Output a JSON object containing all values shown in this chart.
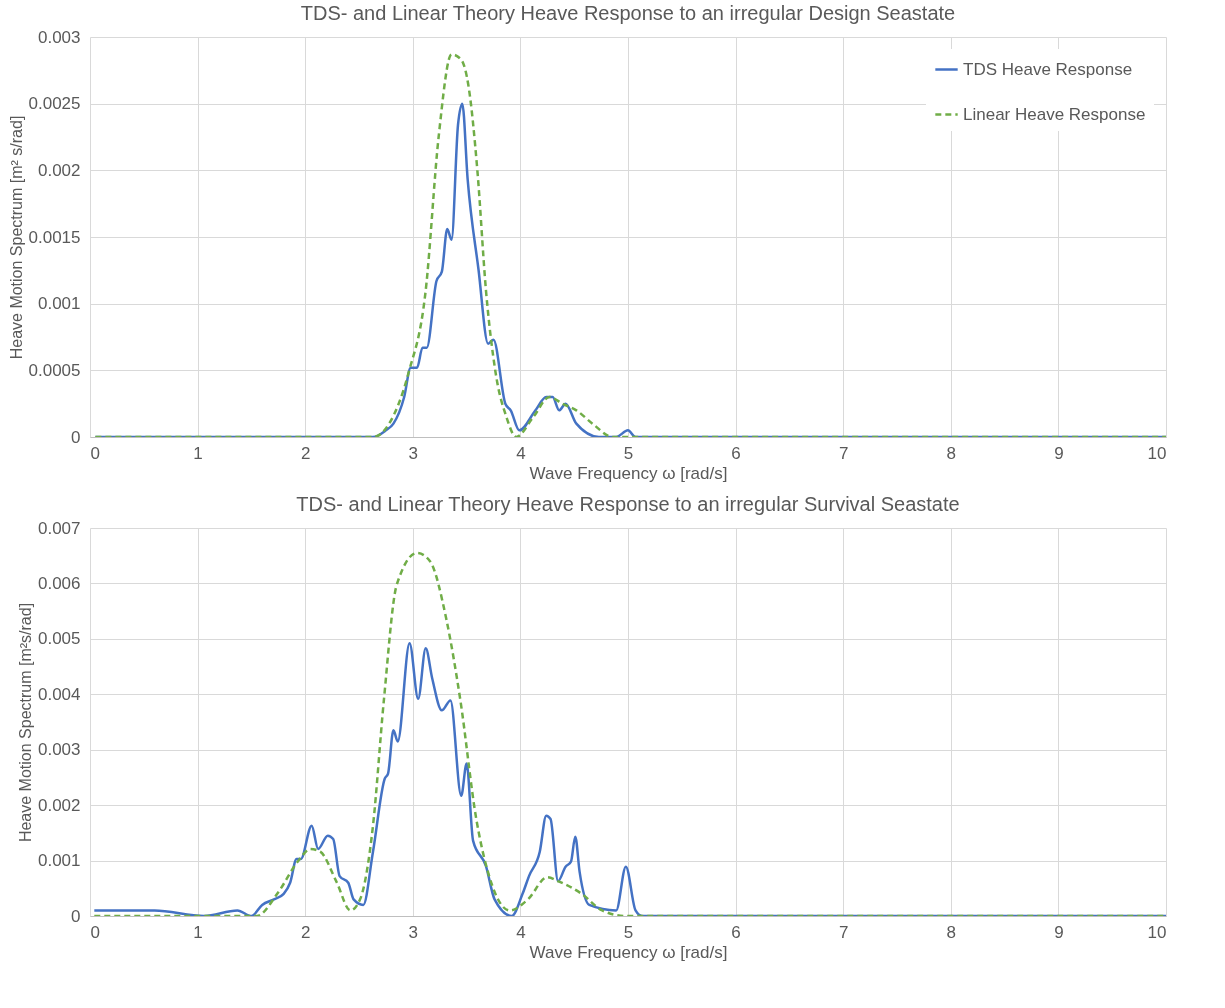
{
  "chart_data": [
    {
      "type": "line",
      "title": "TDS- and Linear Theory Heave Response to an irregular Design Seastate",
      "xlabel": "Wave Frequency ω [rad/s]",
      "ylabel": "Heave Motion Spectrum [m² s/rad]",
      "xlim": [
        0,
        10
      ],
      "ylim": [
        0,
        0.003
      ],
      "xticks": [
        0,
        1,
        2,
        3,
        4,
        5,
        6,
        7,
        8,
        9,
        10
      ],
      "yticks": [
        0,
        0.0005,
        0.001,
        0.0015,
        0.002,
        0.0025,
        0.003
      ],
      "grid": true,
      "legend": "top right",
      "series": [
        {
          "name": "TDS Heave Response",
          "color": "#4472c4",
          "line_style": "solid",
          "x": [
            0.05,
            1,
            2,
            2.63,
            2.75,
            2.82,
            2.92,
            2.98,
            3.04,
            3.09,
            3.13,
            3.22,
            3.27,
            3.32,
            3.36,
            3.42,
            3.46,
            3.51,
            3.61,
            3.7,
            3.75,
            3.86,
            3.91,
            3.99,
            4.14,
            4.24,
            4.3,
            4.36,
            4.42,
            4.52,
            4.73,
            4.89,
            5,
            5.07,
            6,
            8,
            10
          ],
          "values": [
            0,
            0,
            0,
            0,
            5e-05,
            0.0001,
            0.0003,
            0.00052,
            0.00052,
            0.00067,
            0.00067,
            0.00117,
            0.00124,
            0.00156,
            0.00148,
            0.00234,
            0.0025,
            0.00193,
            0.00126,
            0.0007,
            0.00073,
            0.00025,
            0.0002,
            5e-05,
            0.0002,
            0.0003,
            0.0003,
            0.0002,
            0.00025,
            0.0001,
            0,
            0,
            5e-05,
            0,
            0,
            0,
            0
          ]
        },
        {
          "name": "Linear Heave Response",
          "color": "#70ad47",
          "line_style": "dashed",
          "x": [
            0.05,
            1,
            2,
            2.63,
            2.78,
            2.96,
            3.12,
            3.24,
            3.36,
            3.45,
            3.52,
            3.6,
            3.68,
            3.77,
            3.87,
            3.96,
            4.12,
            4.27,
            4.39,
            4.52,
            4.67,
            4.86,
            5.1,
            6,
            8,
            10
          ],
          "values": [
            0,
            0,
            0,
            0,
            0.0001,
            0.00048,
            0.0011,
            0.00225,
            0.00287,
            0.00283,
            0.00262,
            0.002,
            0.0011,
            0.00048,
            0.00015,
            0,
            0.00015,
            0.0003,
            0.00025,
            0.0002,
            0.0001,
            0,
            0,
            0,
            0,
            0
          ]
        }
      ]
    },
    {
      "type": "line",
      "title": "TDS- and Linear Theory Heave Response to an irregular Survival Seastate",
      "xlabel": "Wave Frequency ω [rad/s]",
      "ylabel": "Heave Motion Spectrum [m²s/rad]",
      "xlim": [
        0,
        10
      ],
      "ylim": [
        0,
        0.007
      ],
      "xticks": [
        0,
        1,
        2,
        3,
        4,
        5,
        6,
        7,
        8,
        9,
        10
      ],
      "yticks": [
        0,
        0.001,
        0.002,
        0.003,
        0.004,
        0.005,
        0.006,
        0.007
      ],
      "grid": true,
      "legend": "top right",
      "series": [
        {
          "name": "TDS Heave Response",
          "color": "#4472c4",
          "line_style": "solid",
          "x": [
            0.04,
            0.6,
            1.06,
            1.37,
            1.5,
            1.6,
            1.71,
            1.8,
            1.86,
            1.92,
            1.96,
            2.06,
            2.12,
            2.21,
            2.26,
            2.32,
            2.4,
            2.45,
            2.54,
            2.63,
            2.74,
            2.77,
            2.82,
            2.86,
            2.97,
            3.05,
            3.12,
            3.18,
            3.27,
            3.35,
            3.45,
            3.5,
            3.56,
            3.68,
            3.76,
            3.92,
            4.02,
            4.08,
            4.18,
            4.24,
            4.28,
            4.35,
            4.42,
            4.47,
            4.51,
            4.55,
            4.64,
            4.89,
            4.98,
            5.07,
            5.13,
            6,
            8,
            10
          ],
          "values": [
            0.0001,
            0.0001,
            0,
            0.0001,
            0,
            0.0002,
            0.0003,
            0.0004,
            0.0006,
            0.00103,
            0.00103,
            0.00163,
            0.00121,
            0.00145,
            0.00139,
            0.00072,
            0.0006,
            0.0003,
            0.0002,
            0.00116,
            0.00248,
            0.00257,
            0.00335,
            0.00315,
            0.00492,
            0.00392,
            0.00483,
            0.00429,
            0.00371,
            0.00389,
            0.00217,
            0.00275,
            0.00136,
            0.0009,
            0.0003,
            0,
            0.0004,
            0.00072,
            0.00116,
            0.00181,
            0.00175,
            0.00063,
            0.00089,
            0.00098,
            0.00143,
            0.0008,
            0.0002,
            0.0001,
            0.00089,
            0.0001,
            0,
            0,
            0,
            0
          ]
        },
        {
          "name": "Linear Heave Response",
          "color": "#70ad47",
          "line_style": "dashed",
          "x": [
            0.04,
            1,
            1.55,
            1.74,
            1.93,
            2.05,
            2.14,
            2.29,
            2.42,
            2.51,
            2.63,
            2.73,
            2.85,
            3.04,
            3.16,
            3.31,
            3.44,
            3.59,
            3.74,
            3.9,
            4.07,
            4.25,
            4.36,
            4.57,
            4.76,
            4.98,
            5.26,
            6,
            8,
            10
          ],
          "values": [
            0,
            0,
            0,
            0.0004,
            0.00098,
            0.00121,
            0.00116,
            0.00062,
            0.0001,
            0.0003,
            0.00163,
            0.00387,
            0.00597,
            0.00655,
            0.0064,
            0.00537,
            0.00392,
            0.00175,
            0.00054,
            0.0001,
            0.0003,
            0.0007,
            0.00062,
            0.0004,
            0.0001,
            0,
            0,
            0,
            0,
            0
          ]
        }
      ]
    }
  ]
}
